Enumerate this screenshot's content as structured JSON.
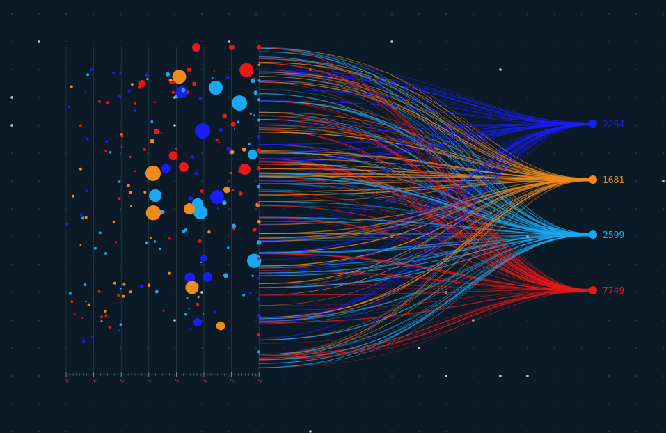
{
  "chart_data": {
    "type": "scatter",
    "title": "",
    "xlabel": "",
    "ylabel": "",
    "x_ticks": [
      "01",
      "02",
      "03",
      "04",
      "05",
      "06",
      "07",
      "08"
    ],
    "grid": true,
    "background": "#0b1a26",
    "nodes": [
      {
        "value": "2264",
        "color": "#1a1ef5"
      },
      {
        "value": "1681",
        "color": "#f08a1c"
      },
      {
        "value": "2599",
        "color": "#1aa8f0"
      },
      {
        "value": "7749",
        "color": "#e81818"
      }
    ]
  }
}
